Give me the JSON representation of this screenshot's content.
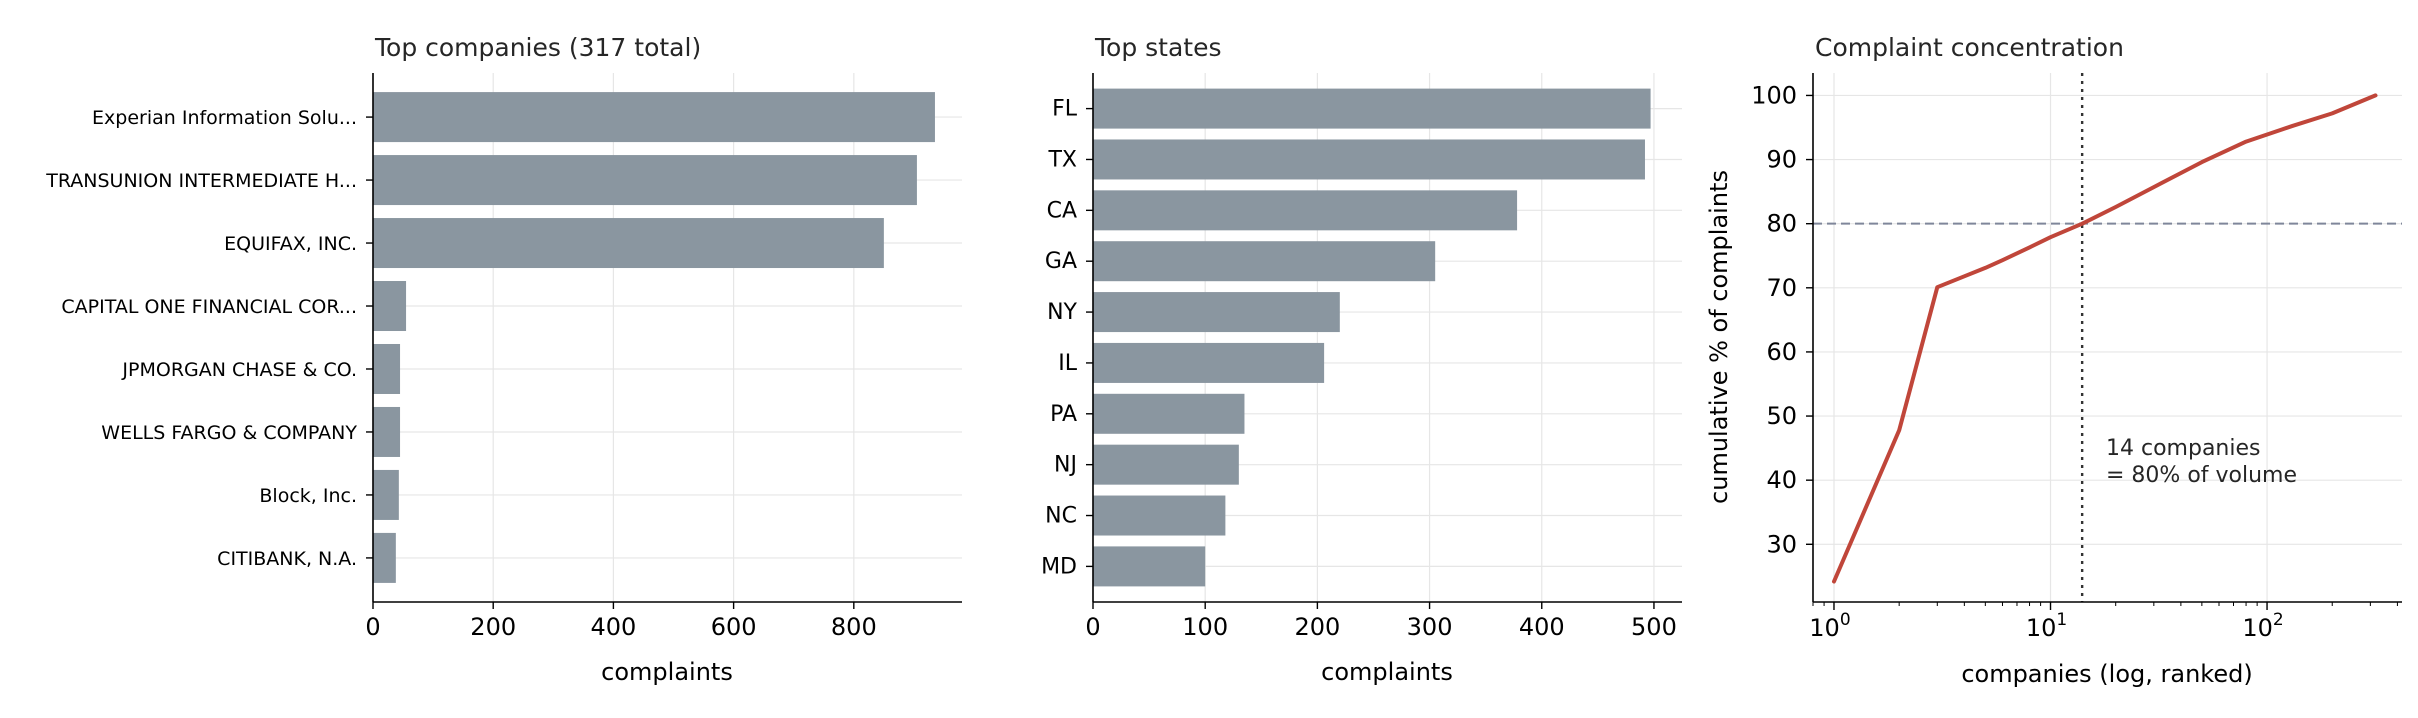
{
  "colors": {
    "bar": "#8a96a0",
    "line": "#c0463a",
    "ref": "#7f869a",
    "grid": "#e6e6e6"
  },
  "chart_data": [
    {
      "type": "bar",
      "orientation": "horizontal",
      "title": "Top companies (317 total)",
      "xlabel": "complaints",
      "xlim": [
        0,
        980
      ],
      "xticks": [
        "0",
        "200",
        "400",
        "600",
        "800"
      ],
      "categories": [
        "Experian Information Solu...",
        "TRANSUNION INTERMEDIATE H...",
        "EQUIFAX, INC.",
        "CAPITAL ONE FINANCIAL COR...",
        "JPMORGAN CHASE & CO.",
        "WELLS FARGO & COMPANY",
        "Block, Inc.",
        "CITIBANK, N.A."
      ],
      "values": [
        935,
        905,
        850,
        55,
        45,
        45,
        43,
        38
      ],
      "grid": true
    },
    {
      "type": "bar",
      "orientation": "horizontal",
      "title": "Top states",
      "xlabel": "complaints",
      "xlim": [
        0,
        525
      ],
      "xticks": [
        "0",
        "100",
        "200",
        "300",
        "400",
        "500"
      ],
      "categories": [
        "FL",
        "TX",
        "CA",
        "GA",
        "NY",
        "IL",
        "PA",
        "NJ",
        "NC",
        "MD"
      ],
      "values": [
        497,
        492,
        378,
        305,
        220,
        206,
        135,
        130,
        118,
        100
      ],
      "grid": true
    },
    {
      "type": "line",
      "title": "Complaint concentration",
      "xlabel": "companies (log, ranked)",
      "ylabel": "cumulative % of complaints",
      "xscale": "log",
      "xlim": [
        0.8,
        420
      ],
      "ylim": [
        21,
        103.5
      ],
      "yticks": [
        "30",
        "40",
        "50",
        "60",
        "70",
        "80",
        "90",
        "100"
      ],
      "xticks": [
        {
          "base": "10",
          "exp": "0"
        },
        {
          "base": "10",
          "exp": "1"
        },
        {
          "base": "10",
          "exp": "2"
        }
      ],
      "x": [
        1,
        2,
        3,
        4,
        5,
        6,
        8,
        10,
        14,
        20,
        30,
        50,
        80,
        130,
        200,
        317
      ],
      "y": [
        24.2,
        47.8,
        70.1,
        71.8,
        73.1,
        74.3,
        76.3,
        77.9,
        80.0,
        82.6,
        85.7,
        89.6,
        92.8,
        95.2,
        97.2,
        100
      ],
      "threshold_y": 80,
      "threshold_x": 14,
      "annotation": [
        "14 companies",
        "= 80% of volume"
      ],
      "grid": true
    }
  ]
}
